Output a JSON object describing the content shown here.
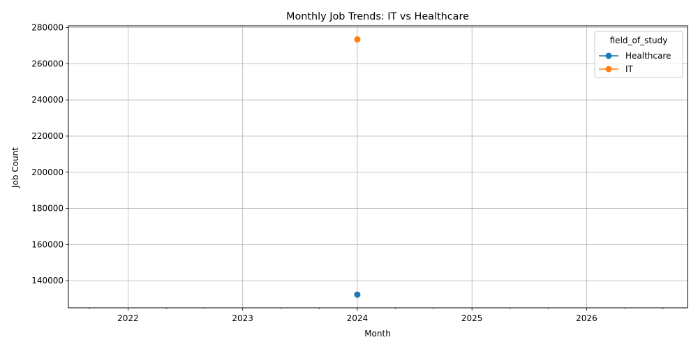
{
  "chart_data": {
    "type": "line",
    "title": "Monthly Job Trends: IT vs Healthcare",
    "xlabel": "Month",
    "ylabel": "Job Count",
    "x_ticks": [
      "2022",
      "2023",
      "2024",
      "2025",
      "2026"
    ],
    "y_ticks": [
      140000,
      160000,
      180000,
      200000,
      220000,
      240000,
      260000,
      280000
    ],
    "xlim": [
      2021.48,
      2026.88
    ],
    "ylim": [
      125000,
      281000
    ],
    "grid": true,
    "legend": {
      "title": "field_of_study",
      "placement": "top-right"
    },
    "series": [
      {
        "name": "Healthcare",
        "color": "#1f77b4",
        "points": [
          {
            "x": "2024",
            "y": 132300
          }
        ]
      },
      {
        "name": "IT",
        "color": "#ff7f0e",
        "points": [
          {
            "x": "2024",
            "y": 273500
          }
        ]
      }
    ]
  }
}
